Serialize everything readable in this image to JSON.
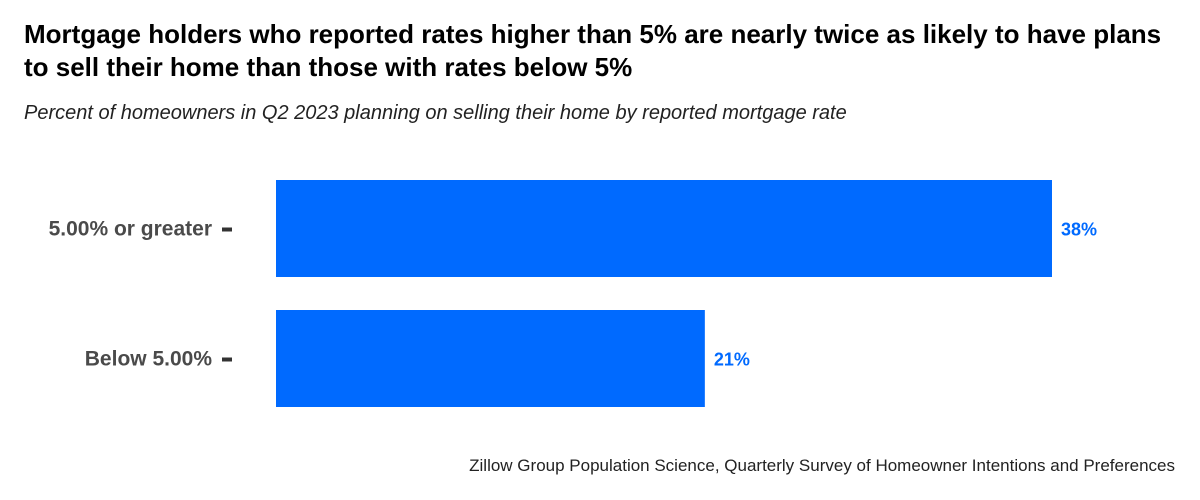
{
  "title": "Mortgage holders who reported rates higher than 5% are nearly twice as likely to have plans to sell their home than those with rates below 5%",
  "subtitle": "Percent of homeowners in Q2 2023 planning on selling their home by reported mortgage rate",
  "caption": "Zillow Group Population Science, Quarterly Survey of Homeowner Intentions and Preferences",
  "colors": {
    "bar": "#006AFF",
    "label": "#006AFF",
    "tick": "#333333"
  },
  "chart_data": {
    "type": "bar",
    "orientation": "horizontal",
    "categories": [
      "5.00% or greater",
      "Below 5.00%"
    ],
    "values": [
      38,
      21
    ],
    "data_labels": [
      "38%",
      "21%"
    ],
    "xlim": [
      0,
      38
    ],
    "grid": false,
    "legend": "none"
  }
}
